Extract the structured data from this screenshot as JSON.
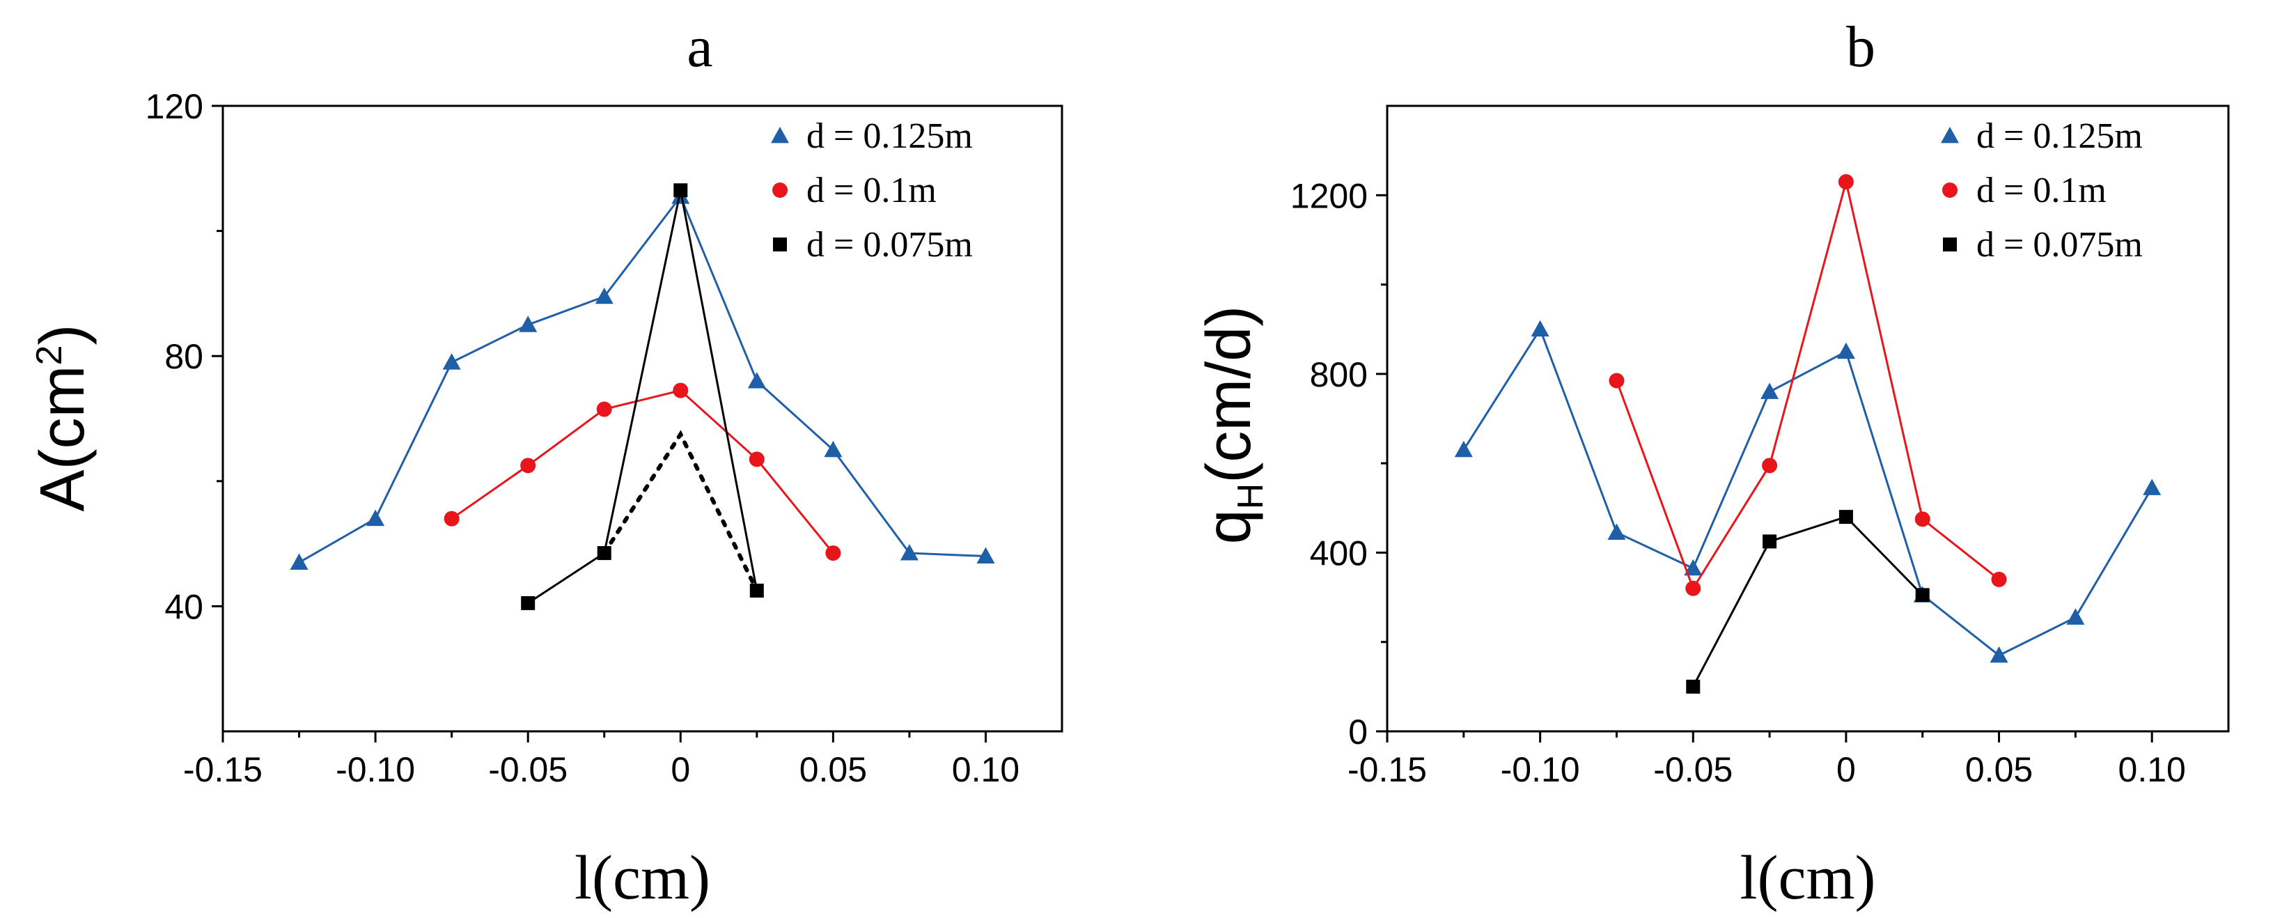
{
  "chart_data": [
    {
      "type": "line",
      "title": "a",
      "xlabel": "l(cm)",
      "ylabel": {
        "base": "A(cm",
        "sup": "2",
        "tail": ")"
      },
      "xlim": [
        -0.15,
        0.125
      ],
      "ylim": [
        20,
        120
      ],
      "xticks": [
        -0.15,
        -0.1,
        -0.05,
        0,
        0.05,
        0.1
      ],
      "xtick_labels": [
        "-0.15",
        "-0.10",
        "-0.05",
        "0",
        "0.05",
        "0.10"
      ],
      "yticks": [
        40,
        80,
        120
      ],
      "ytick_labels": [
        "40",
        "80",
        "120"
      ],
      "legend_position": "top-right",
      "series": [
        {
          "name": "d = 0.125m",
          "color": "#1f5fa8",
          "marker": "triangle",
          "x": [
            -0.125,
            -0.1,
            -0.075,
            -0.05,
            -0.025,
            0,
            0.025,
            0.05,
            0.075,
            0.1
          ],
          "y": [
            47,
            54,
            79,
            85,
            89.5,
            105.5,
            76,
            65,
            48.5,
            48
          ]
        },
        {
          "name": "d = 0.1m",
          "color": "#e8151b",
          "marker": "circle",
          "x": [
            -0.075,
            -0.05,
            -0.025,
            0,
            0.025,
            0.05
          ],
          "y": [
            54,
            62.5,
            71.5,
            74.5,
            63.5,
            48.5
          ]
        },
        {
          "name": "d = 0.075m",
          "color": "#000000",
          "marker": "square",
          "x": [
            -0.05,
            -0.025,
            0,
            0.025
          ],
          "y": [
            40.5,
            48.5,
            106.5,
            42.5
          ]
        },
        {
          "name": "",
          "color": "#000000",
          "marker": "square",
          "dashed": true,
          "x": [
            -0.025,
            0,
            0.025
          ],
          "y": [
            48.5,
            67.5,
            42.5
          ]
        }
      ]
    },
    {
      "type": "line",
      "title": "b",
      "xlabel": "l(cm)",
      "ylabel": {
        "base": "q",
        "sub": "H",
        "tail": "(cm/d)"
      },
      "xlim": [
        -0.15,
        0.125
      ],
      "ylim": [
        0,
        1400
      ],
      "xticks": [
        -0.15,
        -0.1,
        -0.05,
        0,
        0.05,
        0.1
      ],
      "xtick_labels": [
        "-0.15",
        "-0.10",
        "-0.05",
        "0",
        "0.05",
        "0.10"
      ],
      "yticks": [
        0,
        400,
        800,
        1200
      ],
      "ytick_labels": [
        "0",
        "400",
        "800",
        "1200"
      ],
      "legend_position": "top-right",
      "series": [
        {
          "name": "d = 0.125m",
          "color": "#1f5fa8",
          "marker": "triangle",
          "x": [
            -0.125,
            -0.1,
            -0.075,
            -0.05,
            -0.025,
            0,
            0.025,
            0.05,
            0.075,
            0.1
          ],
          "y": [
            630,
            900,
            445,
            365,
            760,
            850,
            305,
            170,
            255,
            545
          ]
        },
        {
          "name": "d = 0.1m",
          "color": "#e8151b",
          "marker": "circle",
          "x": [
            -0.075,
            -0.05,
            -0.025,
            0,
            0.025,
            0.05
          ],
          "y": [
            785,
            320,
            595,
            1230,
            475,
            340
          ]
        },
        {
          "name": "d = 0.075m",
          "color": "#000000",
          "marker": "square",
          "x": [
            -0.05,
            -0.025,
            0,
            0.025
          ],
          "y": [
            100,
            425,
            480,
            305
          ]
        }
      ]
    }
  ]
}
